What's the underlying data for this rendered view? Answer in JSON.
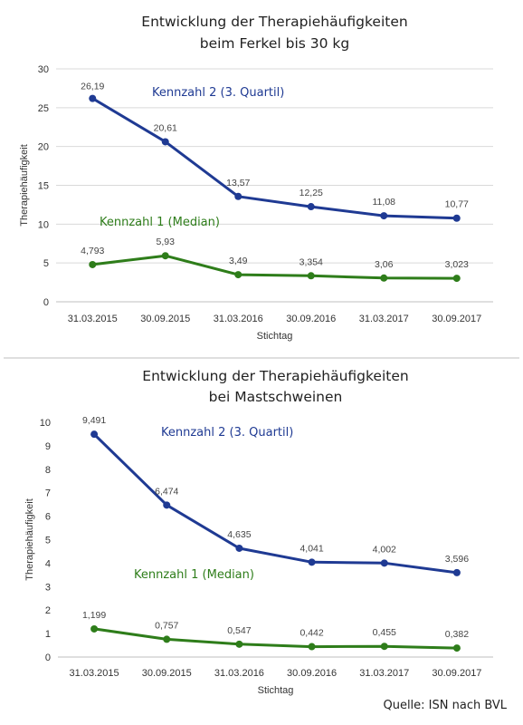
{
  "chart_data": [
    {
      "type": "line",
      "title_lines": [
        "Entwicklung der Therapiehäufigkeiten",
        "beim Ferkel bis 30 kg"
      ],
      "xlabel": "Stichtag",
      "ylabel": "Therapiehäufigkeit",
      "ylim": [
        0,
        30
      ],
      "yticks": [
        0,
        5,
        10,
        15,
        20,
        25,
        30
      ],
      "grid": true,
      "categories": [
        "31.03.2015",
        "30.09.2015",
        "31.03.2016",
        "30.09.2016",
        "31.03.2017",
        "30.09.2017"
      ],
      "series": [
        {
          "name": "Kennzahl 2 (3. Quartil)",
          "color": "#1f3a93",
          "values": [
            26.19,
            20.61,
            13.57,
            12.25,
            11.08,
            10.77
          ],
          "labels": [
            "26,19",
            "20,61",
            "13,57",
            "12,25",
            "11,08",
            "10,77"
          ]
        },
        {
          "name": "Kennzahl 1 (Median)",
          "color": "#2e7d1a",
          "values": [
            4.793,
            5.93,
            3.49,
            3.354,
            3.06,
            3.023
          ],
          "labels": [
            "4,793",
            "5,93",
            "3,49",
            "3,354",
            "3,06",
            "3,023"
          ]
        }
      ]
    },
    {
      "type": "line",
      "title_lines": [
        "Entwicklung der Therapiehäufigkeiten",
        "bei Mastschweinen"
      ],
      "xlabel": "Stichtag",
      "ylabel": "Therapiehäufigkeit",
      "ylim": [
        0,
        10
      ],
      "yticks": [
        0,
        1,
        2,
        3,
        4,
        5,
        6,
        7,
        8,
        9,
        10
      ],
      "grid": false,
      "categories": [
        "31.03.2015",
        "30.09.2015",
        "31.03.2016",
        "30.09.2016",
        "31.03.2017",
        "30.09.2017"
      ],
      "series": [
        {
          "name": "Kennzahl 2 (3. Quartil)",
          "color": "#1f3a93",
          "values": [
            9.491,
            6.474,
            4.635,
            4.041,
            4.002,
            3.596
          ],
          "labels": [
            "9,491",
            "6,474",
            "4,635",
            "4,041",
            "4,002",
            "3,596"
          ]
        },
        {
          "name": "Kennzahl 1 (Median)",
          "color": "#2e7d1a",
          "values": [
            1.199,
            0.757,
            0.547,
            0.442,
            0.455,
            0.382
          ],
          "labels": [
            "1,199",
            "0,757",
            "0,547",
            "0,442",
            "0,455",
            "0,382"
          ]
        }
      ]
    }
  ],
  "source": "Quelle: ISN nach BVL"
}
